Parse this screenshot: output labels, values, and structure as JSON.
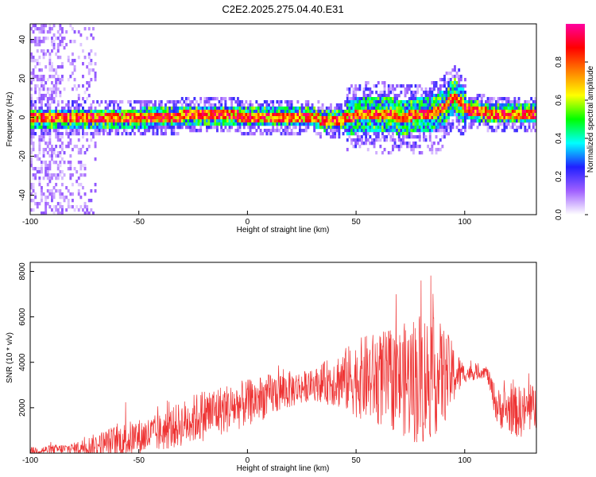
{
  "title": "C2E2.2025.275.04.40.E31",
  "chart_data": [
    {
      "type": "heatmap",
      "xlabel": "Height of straight line (km)",
      "ylabel": "Frequency (Hz)",
      "xlim": [
        -100,
        133
      ],
      "ylim": [
        -50,
        48
      ],
      "x_ticks": [
        -100,
        -50,
        0,
        50,
        100
      ],
      "y_ticks": [
        -40,
        -20,
        0,
        20,
        40
      ],
      "colorbar": {
        "label": "Normalized spectral amplitude",
        "range": [
          0.0,
          1.0
        ],
        "ticks": [
          "0.0",
          "0.2",
          "0.4",
          "0.6",
          "0.8"
        ],
        "colors": [
          "#ffffff",
          "#a060ff",
          "#2020ff",
          "#00ffff",
          "#00ff00",
          "#ffff00",
          "#ff8000",
          "#ff0000",
          "#ff00a0"
        ]
      },
      "ridge_center_hz": [
        [
          -100,
          0
        ],
        [
          -80,
          0
        ],
        [
          -60,
          0
        ],
        [
          -40,
          1
        ],
        [
          -20,
          2
        ],
        [
          -10,
          2
        ],
        [
          0,
          1
        ],
        [
          20,
          1
        ],
        [
          30,
          1
        ],
        [
          35,
          -1
        ],
        [
          45,
          0
        ],
        [
          50,
          2
        ],
        [
          60,
          3
        ],
        [
          70,
          1
        ],
        [
          80,
          2
        ],
        [
          85,
          3
        ],
        [
          90,
          6
        ],
        [
          95,
          12
        ],
        [
          100,
          5
        ],
        [
          110,
          3
        ],
        [
          120,
          3
        ],
        [
          133,
          3
        ]
      ]
    },
    {
      "type": "line",
      "xlabel": "Height of straight line (km)",
      "ylabel": "SNR (10 * v/v)",
      "xlim": [
        -100,
        133
      ],
      "ylim": [
        0,
        8400
      ],
      "x_ticks": [
        -100,
        -50,
        0,
        50,
        100
      ],
      "y_ticks": [
        2000,
        4000,
        6000,
        8000
      ],
      "series_color": "#ee3333",
      "envelope": [
        {
          "x": -100,
          "base": 100,
          "amp": 250
        },
        {
          "x": -80,
          "base": 200,
          "amp": 400
        },
        {
          "x": -60,
          "base": 500,
          "amp": 1200
        },
        {
          "x": -40,
          "base": 900,
          "amp": 1300
        },
        {
          "x": -20,
          "base": 1700,
          "amp": 1800
        },
        {
          "x": 0,
          "base": 2200,
          "amp": 1600
        },
        {
          "x": 15,
          "base": 2700,
          "amp": 1400
        },
        {
          "x": 30,
          "base": 3000,
          "amp": 1000
        },
        {
          "x": 40,
          "base": 3200,
          "amp": 1800
        },
        {
          "x": 55,
          "base": 3300,
          "amp": 3000
        },
        {
          "x": 70,
          "base": 3200,
          "amp": 3600
        },
        {
          "x": 80,
          "base": 3300,
          "amp": 4800
        },
        {
          "x": 90,
          "base": 3400,
          "amp": 3500
        },
        {
          "x": 100,
          "base": 3500,
          "amp": 600
        },
        {
          "x": 110,
          "base": 3600,
          "amp": 400
        },
        {
          "x": 115,
          "base": 2000,
          "amp": 1300
        },
        {
          "x": 125,
          "base": 1800,
          "amp": 1800
        },
        {
          "x": 133,
          "base": 2000,
          "amp": 1600
        }
      ]
    }
  ]
}
